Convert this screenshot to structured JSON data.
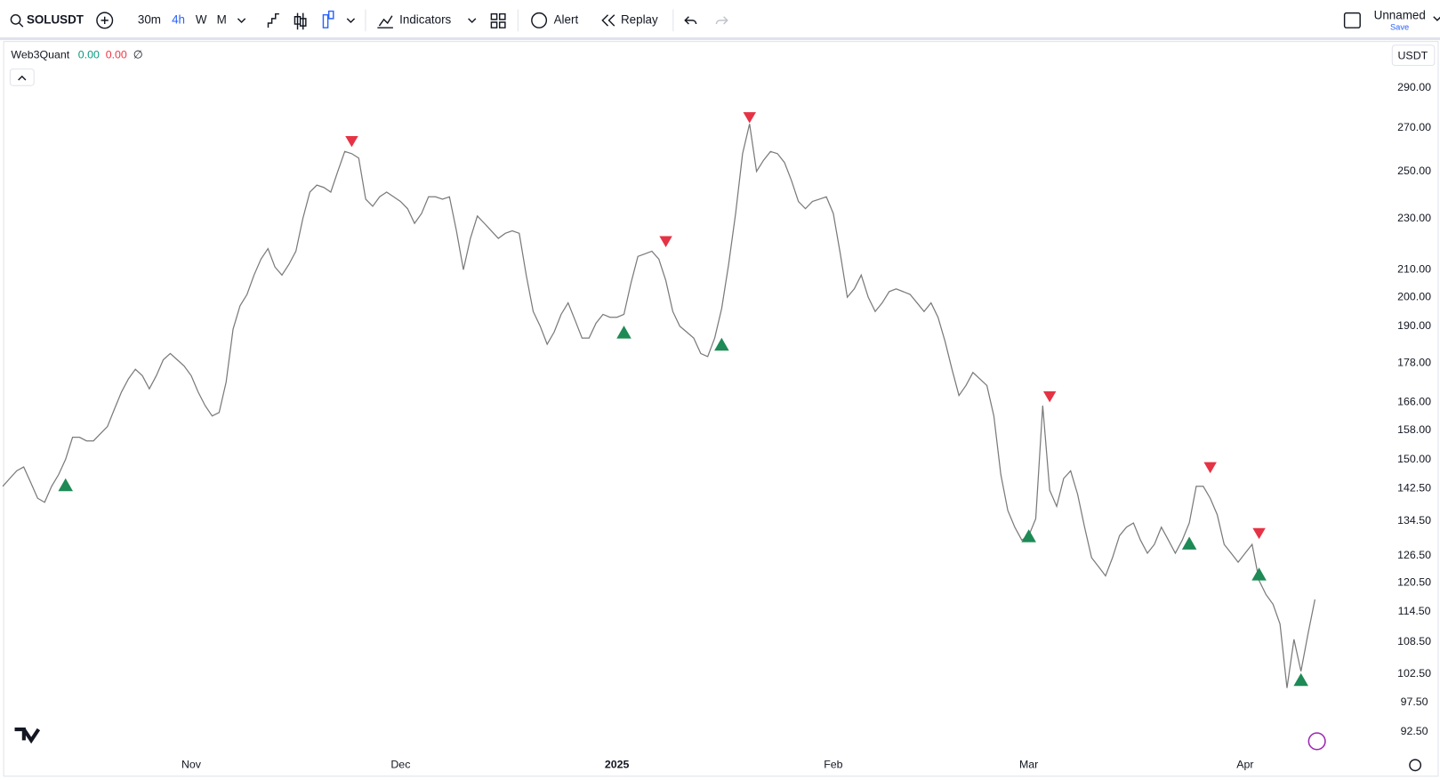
{
  "toolbar": {
    "symbol": "SOLUSDT",
    "intervals": [
      "30m",
      "4h",
      "W",
      "M"
    ],
    "indicators": "Indicators",
    "alert": "Alert",
    "replay": "Replay",
    "layout_name": "Unnamed",
    "save": "Save"
  },
  "legend": {
    "indicator": "Web3Quant",
    "value_1": "0.00",
    "value_2": "0.00",
    "symbol": "∅"
  },
  "currency": "USDT",
  "chart_data": {
    "type": "line",
    "color": "#7a7a7a",
    "log_scale": true,
    "categories": [
      null,
      null,
      null,
      null,
      null,
      null,
      null,
      null,
      null,
      null,
      null,
      null,
      null,
      null,
      null,
      null,
      null,
      null,
      null,
      null,
      null,
      null,
      null,
      null,
      null,
      null,
      null,
      "Nov",
      null,
      null,
      null,
      null,
      null,
      null,
      null,
      null,
      null,
      null,
      null,
      null,
      null,
      null,
      null,
      null,
      null,
      null,
      null,
      null,
      null,
      null,
      null,
      null,
      null,
      null,
      null,
      null,
      null,
      "Dec",
      null,
      null,
      null,
      null,
      null,
      null,
      null,
      null,
      null,
      null,
      null,
      null,
      null,
      null,
      null,
      null,
      null,
      null,
      null,
      null,
      null,
      null,
      null,
      null,
      null,
      null,
      null,
      null,
      null,
      null,
      "2025",
      null,
      null,
      null,
      null,
      null,
      null,
      null,
      null,
      null,
      null,
      null,
      null,
      null,
      null,
      null,
      null,
      null,
      null,
      null,
      null,
      null,
      null,
      null,
      null,
      null,
      null,
      null,
      null,
      null,
      null,
      "Feb",
      null,
      null,
      null,
      null,
      null,
      null,
      null,
      null,
      null,
      null,
      null,
      null,
      null,
      null,
      null,
      null,
      null,
      null,
      null,
      null,
      null,
      null,
      null,
      null,
      null,
      null,
      null,
      "Mar",
      null,
      null,
      null,
      null,
      null,
      null,
      null,
      null,
      null,
      null,
      null,
      null,
      null,
      null,
      null,
      null,
      null,
      null,
      null,
      null,
      null,
      null,
      null,
      null,
      null,
      null,
      null,
      null,
      null,
      null,
      "Apr",
      null,
      null,
      null,
      null,
      null,
      null,
      null,
      null,
      null,
      null
    ],
    "values": [
      143,
      145,
      147,
      148,
      144,
      140,
      139,
      143,
      146,
      150,
      156,
      156,
      155,
      155,
      157,
      159,
      164,
      169,
      173,
      176,
      174,
      170,
      174,
      179,
      181,
      179,
      177,
      174,
      169,
      165,
      162,
      163,
      172,
      189,
      197,
      201,
      208,
      214,
      218,
      211,
      208,
      212,
      217,
      230,
      241,
      244,
      243,
      241,
      250,
      259,
      258,
      256,
      238,
      235,
      239,
      241,
      239,
      237,
      234,
      228,
      232,
      239,
      239,
      238,
      239,
      225,
      210,
      222,
      231,
      228,
      225,
      222,
      224,
      225,
      224,
      208,
      195,
      190,
      184,
      188,
      194,
      198,
      192,
      186,
      186,
      191,
      194,
      193,
      193,
      194,
      205,
      215,
      216,
      217,
      214,
      206,
      195,
      190,
      188,
      186,
      181,
      180,
      186,
      196,
      212,
      232,
      258,
      272,
      250,
      255,
      259,
      258,
      254,
      246,
      237,
      234,
      237,
      238,
      239,
      232,
      216,
      200,
      203,
      208,
      200,
      195,
      198,
      202,
      203,
      202,
      201,
      198,
      195,
      198,
      193,
      185,
      176,
      168,
      171,
      175,
      173,
      171,
      162,
      146,
      137,
      133,
      130,
      131,
      135,
      165,
      142,
      138,
      145,
      147,
      141,
      133,
      126,
      124,
      122,
      126,
      131,
      133,
      134,
      130,
      127,
      129,
      133,
      130,
      127,
      130,
      134,
      143,
      143,
      140,
      136,
      129,
      127,
      125,
      127,
      129,
      121,
      118,
      116,
      112,
      100,
      109,
      103,
      110,
      117
    ],
    "markers": [
      {
        "category": 9,
        "value": 143.4,
        "kind": "buy",
        "color": "#1e8a55"
      },
      {
        "category": 89,
        "value": 188,
        "kind": "buy",
        "color": "#1e8a55"
      },
      {
        "category": 103,
        "value": 184,
        "kind": "buy",
        "color": "#1e8a55"
      },
      {
        "category": 147,
        "value": 131,
        "kind": "buy",
        "color": "#1e8a55"
      },
      {
        "category": 170,
        "value": 129.3,
        "kind": "buy",
        "color": "#1e8a55"
      },
      {
        "category": 180,
        "value": 122.4,
        "kind": "buy",
        "color": "#1e8a55"
      },
      {
        "category": 186,
        "value": 101.5,
        "kind": "buy",
        "color": "#1e8a55"
      },
      {
        "category": 50,
        "value": 263.6,
        "kind": "sell",
        "color": "#e53345"
      },
      {
        "category": 95,
        "value": 220.7,
        "kind": "sell",
        "color": "#e53345"
      },
      {
        "category": 107,
        "value": 275,
        "kind": "sell",
        "color": "#e53345"
      },
      {
        "category": 150,
        "value": 167.6,
        "kind": "sell",
        "color": "#e53345"
      },
      {
        "category": 173,
        "value": 147.8,
        "kind": "sell",
        "color": "#e53345"
      },
      {
        "category": 180,
        "value": 131.5,
        "kind": "sell",
        "color": "#e53345"
      }
    ],
    "ylim": [
      89.8,
      314.8
    ],
    "yticks": [
      {
        "value": 92.5,
        "label": "92.50"
      },
      {
        "value": 97.5,
        "label": "97.50"
      },
      {
        "value": 102.5,
        "label": "102.50"
      },
      {
        "value": 108.5,
        "label": "108.50"
      },
      {
        "value": 114.5,
        "label": "114.50"
      },
      {
        "value": 120.5,
        "label": "120.50"
      },
      {
        "value": 126.5,
        "label": "126.50"
      },
      {
        "value": 134.5,
        "label": "134.50"
      },
      {
        "value": 142.5,
        "label": "142.50"
      },
      {
        "value": 150,
        "label": "150.00"
      },
      {
        "value": 158,
        "label": "158.00"
      },
      {
        "value": 166,
        "label": "166.00"
      },
      {
        "value": 178,
        "label": "178.00"
      },
      {
        "value": 190,
        "label": "190.00"
      },
      {
        "value": 200,
        "label": "200.00"
      },
      {
        "value": 210,
        "label": "210.00"
      },
      {
        "value": 230,
        "label": "230.00"
      },
      {
        "value": 250,
        "label": "250.00"
      },
      {
        "value": 270,
        "label": "270.00"
      },
      {
        "value": 290,
        "label": "290.00"
      }
    ],
    "grid": false
  }
}
